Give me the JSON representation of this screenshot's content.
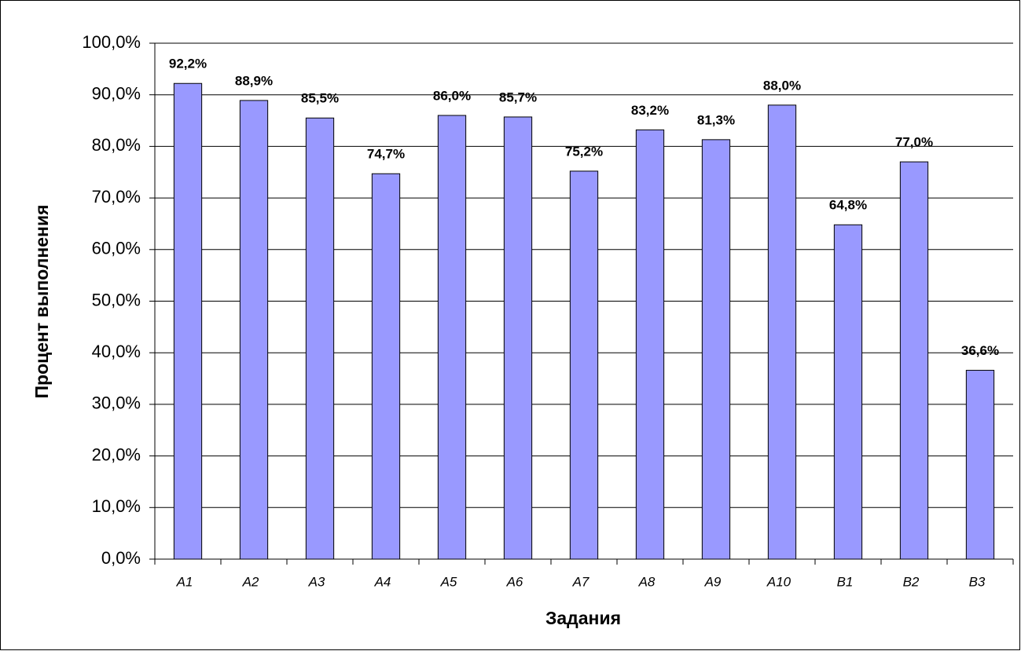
{
  "chart_data": {
    "type": "bar",
    "x_label": "Задания",
    "y_label": "Процент выполнения",
    "categories": [
      "A1",
      "A2",
      "A3",
      "A4",
      "A5",
      "A6",
      "A7",
      "A8",
      "A9",
      "A10",
      "B1",
      "B2",
      "B3"
    ],
    "values": [
      92.2,
      88.9,
      85.5,
      74.7,
      86.0,
      85.7,
      75.2,
      83.2,
      81.3,
      88.0,
      64.8,
      77.0,
      36.6
    ],
    "value_labels": [
      "92,2%",
      "88,9%",
      "85,5%",
      "74,7%",
      "86,0%",
      "85,7%",
      "75,2%",
      "83,2%",
      "81,3%",
      "88,0%",
      "64,8%",
      "77,0%",
      "36,6%"
    ],
    "color": "#9999ff",
    "ylim": [
      0,
      100
    ],
    "yticks": [
      {
        "value": 0,
        "label": "0,0%"
      },
      {
        "value": 10,
        "label": "10,0%"
      },
      {
        "value": 20,
        "label": "20,0%"
      },
      {
        "value": 30,
        "label": "30,0%"
      },
      {
        "value": 40,
        "label": "40,0%"
      },
      {
        "value": 50,
        "label": "50,0%"
      },
      {
        "value": 60,
        "label": "60,0%"
      },
      {
        "value": 70,
        "label": "70,0%"
      },
      {
        "value": 80,
        "label": "80,0%"
      },
      {
        "value": 90,
        "label": "90,0%"
      },
      {
        "value": 100,
        "label": "100,0%"
      }
    ],
    "grid": true
  }
}
